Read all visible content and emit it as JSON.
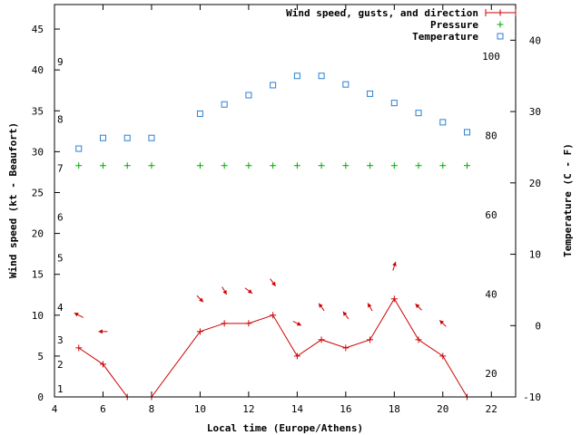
{
  "chart_data": {
    "type": "line",
    "xlabel": "Local time (Europe/Athens)",
    "ylabel": "Wind speed (kt - Beaufort)",
    "y2label": "Temperature (C - F)",
    "xlim": [
      4,
      23
    ],
    "ylim": [
      0,
      48
    ],
    "y2lim": [
      -10,
      45
    ],
    "x_ticks": [
      4,
      6,
      8,
      10,
      12,
      14,
      16,
      18,
      20,
      22
    ],
    "y_ticks": [
      0,
      5,
      10,
      15,
      20,
      25,
      30,
      35,
      40,
      45
    ],
    "y2_ticks": [
      -10,
      0,
      10,
      20,
      30,
      40
    ],
    "beaufort_labels": [
      {
        "label": "1",
        "kt": 1.0
      },
      {
        "label": "2",
        "kt": 4.0
      },
      {
        "label": "3",
        "kt": 7.0
      },
      {
        "label": "4",
        "kt": 11.0
      },
      {
        "label": "5",
        "kt": 17.0
      },
      {
        "label": "6",
        "kt": 22.0
      },
      {
        "label": "7",
        "kt": 28.0
      },
      {
        "label": "8",
        "kt": 34.0
      },
      {
        "label": "9",
        "kt": 41.0
      }
    ],
    "fahrenheit_labels": [
      {
        "label": "20",
        "f": 20
      },
      {
        "label": "40",
        "f": 40
      },
      {
        "label": "60",
        "f": 60
      },
      {
        "label": "80",
        "f": 80
      },
      {
        "label": "100",
        "f": 100
      }
    ],
    "legend_position": "top-right",
    "grid": false,
    "series": [
      {
        "name": "Wind speed, gusts, and direction",
        "color": "#cc0000",
        "marker": "plus-line",
        "x": [
          5,
          6,
          7,
          8,
          10,
          11,
          12,
          13,
          14,
          15,
          16,
          17,
          18,
          19,
          20,
          21
        ],
        "y": [
          6,
          4,
          0,
          0,
          8,
          9,
          9,
          10,
          5,
          7,
          6,
          7,
          12,
          7,
          5,
          0
        ]
      },
      {
        "name": "Pressure",
        "color": "#00aa00",
        "marker": "plus",
        "x": [
          5,
          6,
          7,
          8,
          10,
          11,
          12,
          13,
          14,
          15,
          16,
          17,
          18,
          19,
          20,
          21
        ],
        "y": [
          28.3,
          28.3,
          28.3,
          28.3,
          28.3,
          28.3,
          28.3,
          28.3,
          28.3,
          28.3,
          28.3,
          28.3,
          28.3,
          28.3,
          28.3,
          28.3
        ]
      },
      {
        "name": "Temperature",
        "color": "#2a7fd4",
        "marker": "square",
        "axis": "y2",
        "x": [
          5,
          6,
          7,
          8,
          10,
          11,
          12,
          13,
          14,
          15,
          16,
          17,
          18,
          19,
          20,
          21
        ],
        "y": [
          24.8,
          26.3,
          26.3,
          26.3,
          29.7,
          31.0,
          32.3,
          33.7,
          35.0,
          35.0,
          33.8,
          32.5,
          31.2,
          29.8,
          28.5,
          27.1
        ]
      }
    ],
    "wind_arrows": [
      {
        "x": 5,
        "y": 10,
        "dx": -1,
        "dy": -0.5
      },
      {
        "x": 6,
        "y": 8,
        "dx": -1,
        "dy": 0
      },
      {
        "x": 10,
        "y": 12,
        "dx": 0.7,
        "dy": 0.7
      },
      {
        "x": 11,
        "y": 13,
        "dx": 0.5,
        "dy": 0.85
      },
      {
        "x": 12,
        "y": 13,
        "dx": 0.8,
        "dy": 0.6
      },
      {
        "x": 13,
        "y": 14,
        "dx": 0.6,
        "dy": 0.8
      },
      {
        "x": 14,
        "y": 9,
        "dx": 0.9,
        "dy": 0.45
      },
      {
        "x": 15,
        "y": 11,
        "dx": -0.6,
        "dy": -0.8
      },
      {
        "x": 16,
        "y": 10,
        "dx": -0.6,
        "dy": -0.8
      },
      {
        "x": 17,
        "y": 11,
        "dx": -0.5,
        "dy": -0.85
      },
      {
        "x": 18,
        "y": 16,
        "dx": 0.3,
        "dy": -0.95
      },
      {
        "x": 19,
        "y": 11,
        "dx": -0.7,
        "dy": -0.7
      },
      {
        "x": 20,
        "y": 9,
        "dx": -0.7,
        "dy": -0.7
      }
    ]
  }
}
